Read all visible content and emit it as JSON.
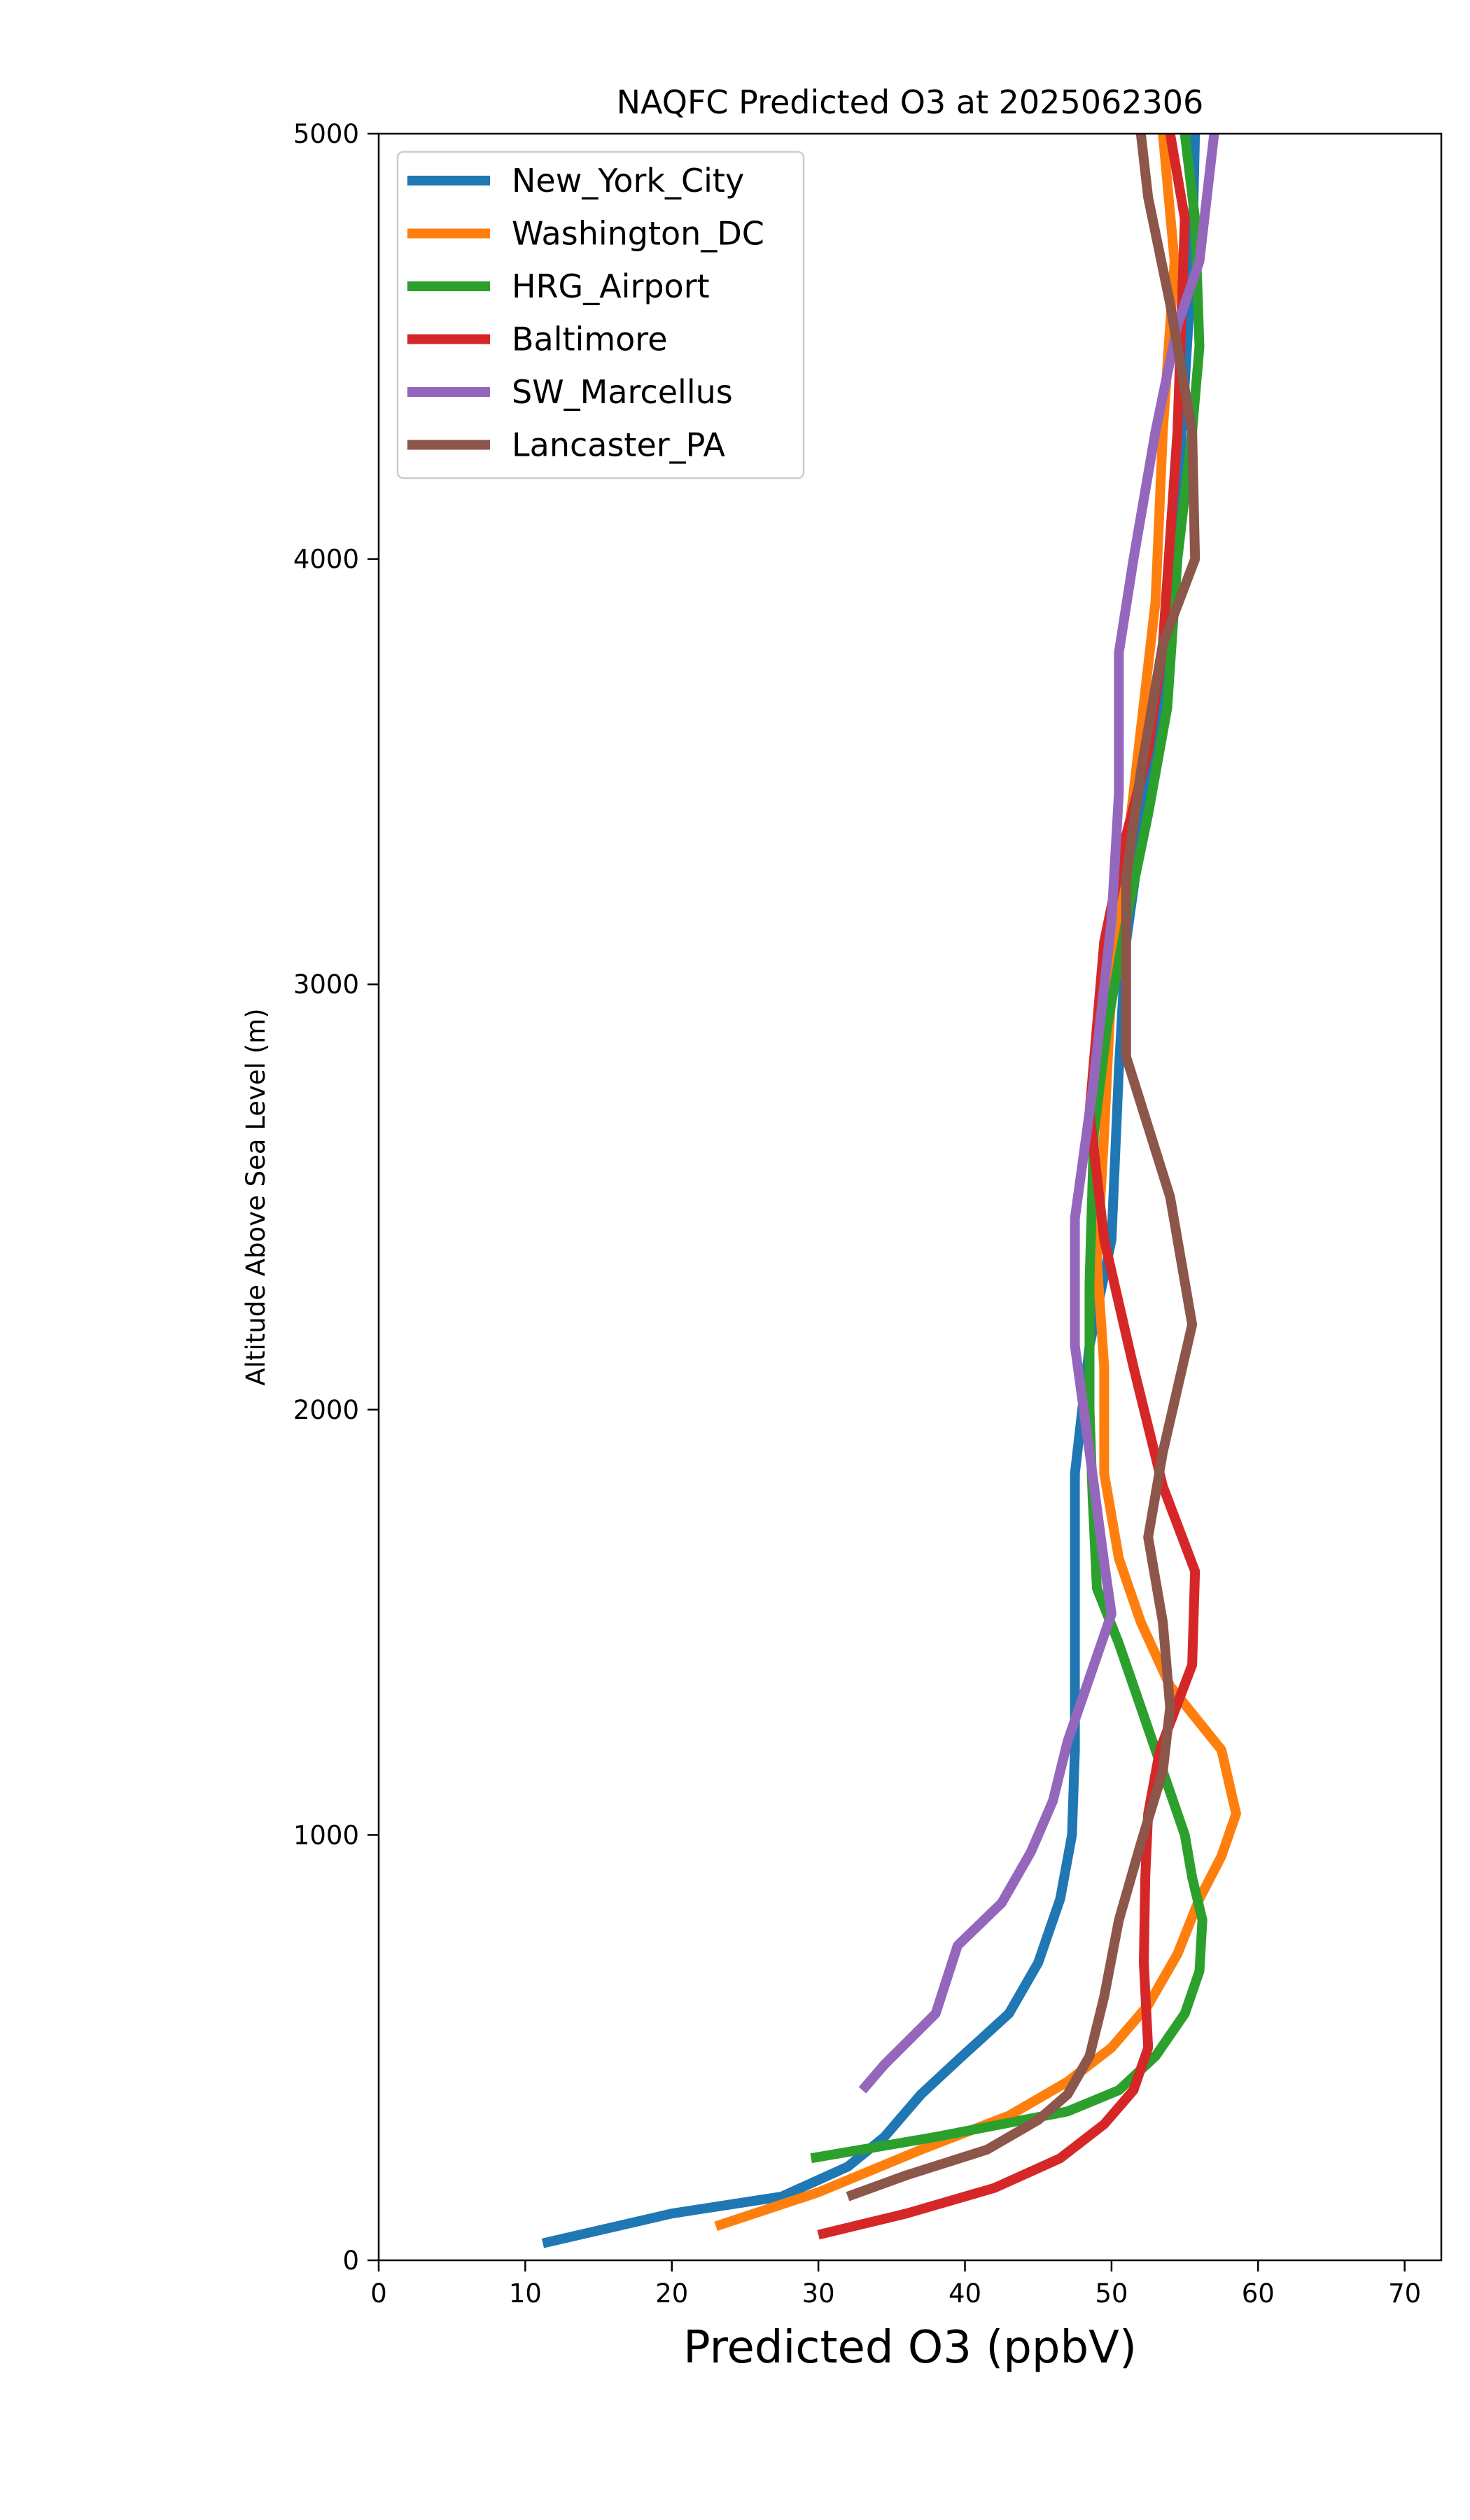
{
  "chart_data": {
    "type": "line",
    "title": "NAQFC Predicted O3 at 2025062306",
    "xlabel": "Predicted O3 (ppbV)",
    "ylabel": "Altitude Above Sea Level (m)",
    "xlim": [
      0,
      72.5
    ],
    "ylim": [
      0,
      5000
    ],
    "xticks": [
      0,
      10,
      20,
      30,
      40,
      50,
      60,
      70
    ],
    "yticks": [
      0,
      1000,
      2000,
      3000,
      4000,
      5000
    ],
    "grid": false,
    "legend_position": "top-left",
    "series": [
      {
        "name": "New_York_City",
        "color": "#1f77b4",
        "points": [
          [
            11.2,
            40
          ],
          [
            20,
            110
          ],
          [
            27.5,
            150
          ],
          [
            32,
            220
          ],
          [
            34.5,
            290
          ],
          [
            37,
            390
          ],
          [
            39.5,
            470
          ],
          [
            43,
            580
          ],
          [
            45,
            700
          ],
          [
            46.5,
            850
          ],
          [
            47.3,
            1000
          ],
          [
            47.5,
            1200
          ],
          [
            47.5,
            1500
          ],
          [
            47.5,
            1850
          ],
          [
            48.5,
            2150
          ],
          [
            50,
            2400
          ],
          [
            50.5,
            2800
          ],
          [
            51,
            3100
          ],
          [
            52,
            3350
          ],
          [
            53,
            3600
          ],
          [
            54,
            3900
          ],
          [
            54.8,
            4300
          ],
          [
            55.5,
            4700
          ],
          [
            55.7,
            5000
          ]
        ]
      },
      {
        "name": "Washington_DC",
        "color": "#ff7f0e",
        "points": [
          [
            23,
            80
          ],
          [
            30,
            160
          ],
          [
            37,
            260
          ],
          [
            43,
            340
          ],
          [
            47,
            420
          ],
          [
            50,
            500
          ],
          [
            52.5,
            600
          ],
          [
            54.5,
            720
          ],
          [
            56,
            850
          ],
          [
            57.5,
            950
          ],
          [
            58.5,
            1050
          ],
          [
            57.5,
            1200
          ],
          [
            54,
            1350
          ],
          [
            52,
            1500
          ],
          [
            50.5,
            1650
          ],
          [
            49.5,
            1850
          ],
          [
            49.5,
            2100
          ],
          [
            49,
            2350
          ],
          [
            49.5,
            2650
          ],
          [
            50,
            3000
          ],
          [
            51,
            3300
          ],
          [
            52,
            3600
          ],
          [
            53,
            3900
          ],
          [
            53.5,
            4300
          ],
          [
            54.3,
            4700
          ],
          [
            53.5,
            5000
          ]
        ]
      },
      {
        "name": "HRG_Airport",
        "color": "#2ca02c",
        "points": [
          [
            29.5,
            240
          ],
          [
            38,
            290
          ],
          [
            47,
            350
          ],
          [
            50.5,
            400
          ],
          [
            53,
            480
          ],
          [
            55,
            580
          ],
          [
            56,
            680
          ],
          [
            56.2,
            800
          ],
          [
            55.5,
            900
          ],
          [
            55,
            1000
          ],
          [
            53.5,
            1150
          ],
          [
            52,
            1300
          ],
          [
            50.5,
            1450
          ],
          [
            49,
            1580
          ],
          [
            48.7,
            1800
          ],
          [
            48.5,
            2000
          ],
          [
            48.5,
            2300
          ],
          [
            48.8,
            2650
          ],
          [
            49.7,
            2900
          ],
          [
            51,
            3150
          ],
          [
            52.5,
            3400
          ],
          [
            53.8,
            3650
          ],
          [
            54.5,
            4000
          ],
          [
            55.5,
            4300
          ],
          [
            56,
            4500
          ],
          [
            55.7,
            4800
          ],
          [
            55,
            5000
          ]
        ]
      },
      {
        "name": "Baltimore",
        "color": "#d62728",
        "points": [
          [
            30,
            60
          ],
          [
            36,
            110
          ],
          [
            42,
            170
          ],
          [
            46.5,
            240
          ],
          [
            49.5,
            320
          ],
          [
            51.5,
            400
          ],
          [
            52.5,
            500
          ],
          [
            52.2,
            700
          ],
          [
            52.3,
            900
          ],
          [
            52.5,
            1050
          ],
          [
            53.3,
            1200
          ],
          [
            55.5,
            1400
          ],
          [
            55.7,
            1620
          ],
          [
            53.5,
            1820
          ],
          [
            51.5,
            2100
          ],
          [
            49.5,
            2400
          ],
          [
            48.5,
            2700
          ],
          [
            49.5,
            3100
          ],
          [
            51,
            3350
          ],
          [
            52.5,
            3550
          ],
          [
            53.5,
            3800
          ],
          [
            54.5,
            4300
          ],
          [
            55,
            4800
          ],
          [
            54,
            5000
          ]
        ]
      },
      {
        "name": "SW_Marcellus",
        "color": "#9467bd",
        "points": [
          [
            33,
            400
          ],
          [
            34.5,
            460
          ],
          [
            38,
            580
          ],
          [
            39.5,
            740
          ],
          [
            42.5,
            840
          ],
          [
            44.5,
            960
          ],
          [
            46,
            1080
          ],
          [
            47,
            1220
          ],
          [
            48.5,
            1370
          ],
          [
            50,
            1520
          ],
          [
            49.5,
            1640
          ],
          [
            48.5,
            1900
          ],
          [
            47.5,
            2150
          ],
          [
            47.5,
            2450
          ],
          [
            48.7,
            2750
          ],
          [
            50,
            3150
          ],
          [
            50.5,
            3450
          ],
          [
            50.5,
            3780
          ],
          [
            51.5,
            4000
          ],
          [
            53,
            4300
          ],
          [
            54.5,
            4550
          ],
          [
            56,
            4700
          ],
          [
            57,
            5000
          ]
        ]
      },
      {
        "name": "Lancaster_PA",
        "color": "#8c564b",
        "points": [
          [
            32,
            150
          ],
          [
            36,
            200
          ],
          [
            41.5,
            260
          ],
          [
            45,
            330
          ],
          [
            47,
            390
          ],
          [
            48.5,
            480
          ],
          [
            49.5,
            620
          ],
          [
            50.5,
            800
          ],
          [
            52,
            980
          ],
          [
            53.5,
            1150
          ],
          [
            54,
            1300
          ],
          [
            53.5,
            1500
          ],
          [
            52.5,
            1700
          ],
          [
            53.5,
            1900
          ],
          [
            54.5,
            2050
          ],
          [
            55.5,
            2200
          ],
          [
            54,
            2500
          ],
          [
            51,
            2830
          ],
          [
            51,
            3000
          ],
          [
            51,
            3250
          ],
          [
            52,
            3500
          ],
          [
            53.5,
            3800
          ],
          [
            55.7,
            4000
          ],
          [
            55.5,
            4300
          ],
          [
            54,
            4600
          ],
          [
            52.5,
            4850
          ],
          [
            52,
            5000
          ]
        ]
      }
    ]
  }
}
